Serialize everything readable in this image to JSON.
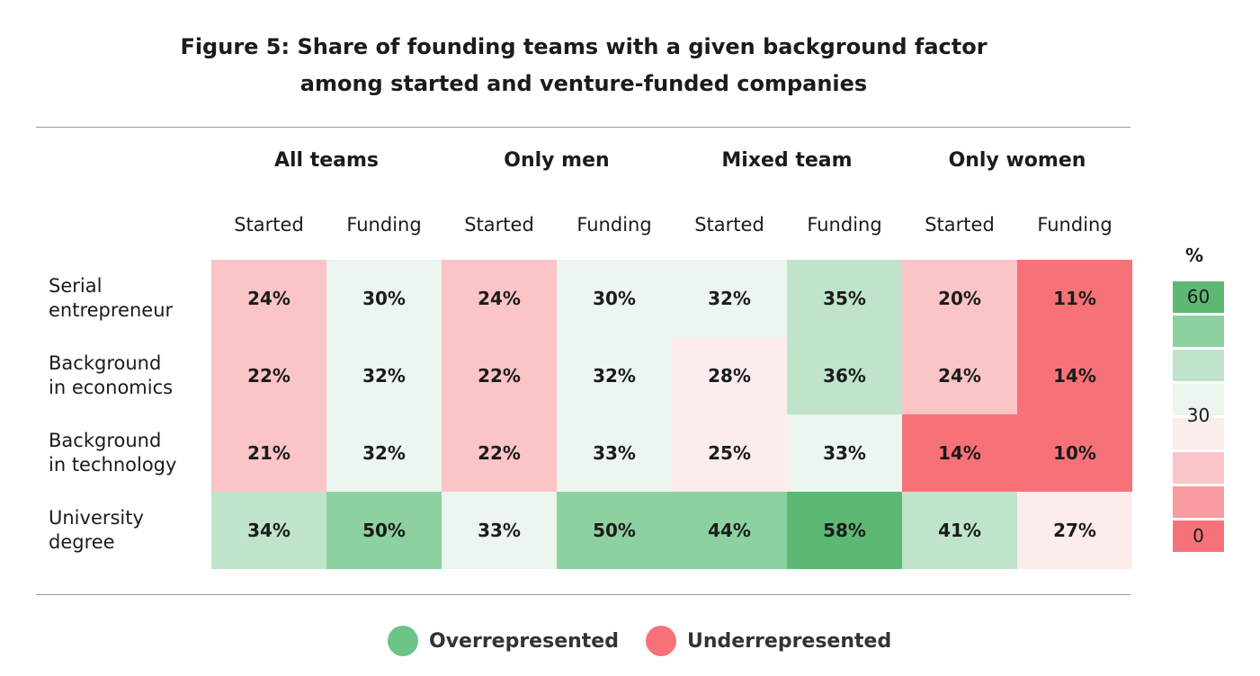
{
  "chart_data": {
    "type": "heatmap",
    "title_line1": "Figure 5: Share of founding teams with a given background factor",
    "title_line2": "among started and venture-funded companies",
    "groups": [
      "All teams",
      "Only men",
      "Mixed team",
      "Only women"
    ],
    "columns": [
      "Started",
      "Funding",
      "Started",
      "Funding",
      "Started",
      "Funding",
      "Started",
      "Funding"
    ],
    "rows": [
      {
        "label_line1": "Serial",
        "label_line2": "entrepreneur",
        "values": [
          24,
          30,
          24,
          30,
          32,
          35,
          20,
          11
        ]
      },
      {
        "label_line1": "Background",
        "label_line2": "in economics",
        "values": [
          22,
          32,
          22,
          32,
          28,
          36,
          24,
          14
        ]
      },
      {
        "label_line1": "Background",
        "label_line2": "in technology",
        "values": [
          21,
          32,
          22,
          33,
          25,
          33,
          14,
          10
        ]
      },
      {
        "label_line1": "University",
        "label_line2": "degree",
        "values": [
          34,
          50,
          33,
          50,
          44,
          58,
          41,
          27
        ]
      }
    ],
    "value_suffix": "%",
    "color_scale": {
      "unit": "%",
      "min": 0,
      "mid": 30,
      "max": 60,
      "ticks": [
        "60",
        "30",
        "0"
      ],
      "colors_high_to_low": [
        "#5db874",
        "#8dd1a0",
        "#bfe4cb",
        "#eaf6ee",
        "#fcecec",
        "#fbc4c7",
        "#f99ca1",
        "#f77278"
      ]
    },
    "legend": [
      {
        "label": "Overrepresented",
        "color": "#6cc487"
      },
      {
        "label": "Underrepresented",
        "color": "#f77278"
      }
    ]
  }
}
